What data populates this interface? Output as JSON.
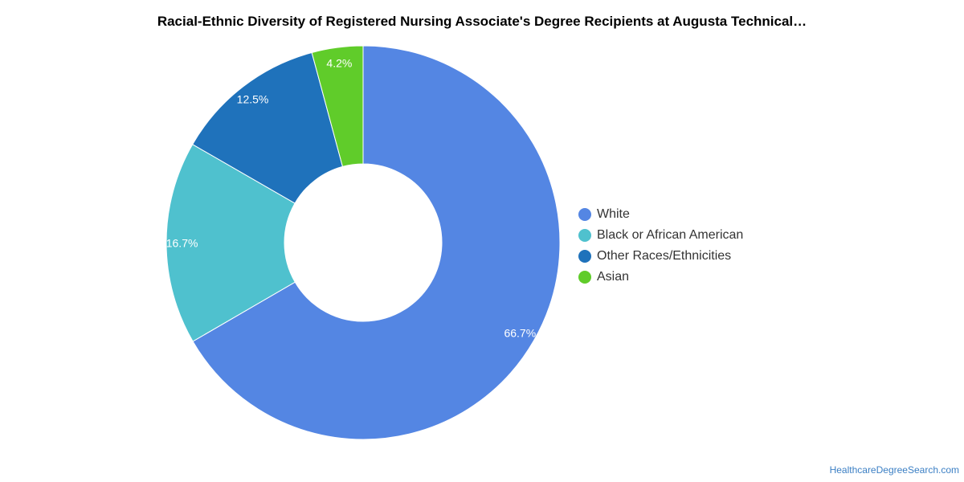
{
  "chart_data": {
    "type": "pie",
    "variant": "donut",
    "title": "Racial-Ethnic Diversity of Registered Nursing Associate's Degree Recipients at Augusta Technical…",
    "legend_position": "right",
    "slices": [
      {
        "name": "White",
        "value": 66.7,
        "label": "66.7%",
        "color": "#5486e3"
      },
      {
        "name": "Black or African American",
        "value": 16.7,
        "label": "16.7%",
        "color": "#4fc1ce"
      },
      {
        "name": "Other Races/Ethnicities",
        "value": 12.5,
        "label": "12.5%",
        "color": "#1f72bb"
      },
      {
        "name": "Asian",
        "value": 4.2,
        "label": "4.2%",
        "color": "#60cc2a"
      }
    ]
  },
  "source": "HealthcareDegreeSearch.com"
}
